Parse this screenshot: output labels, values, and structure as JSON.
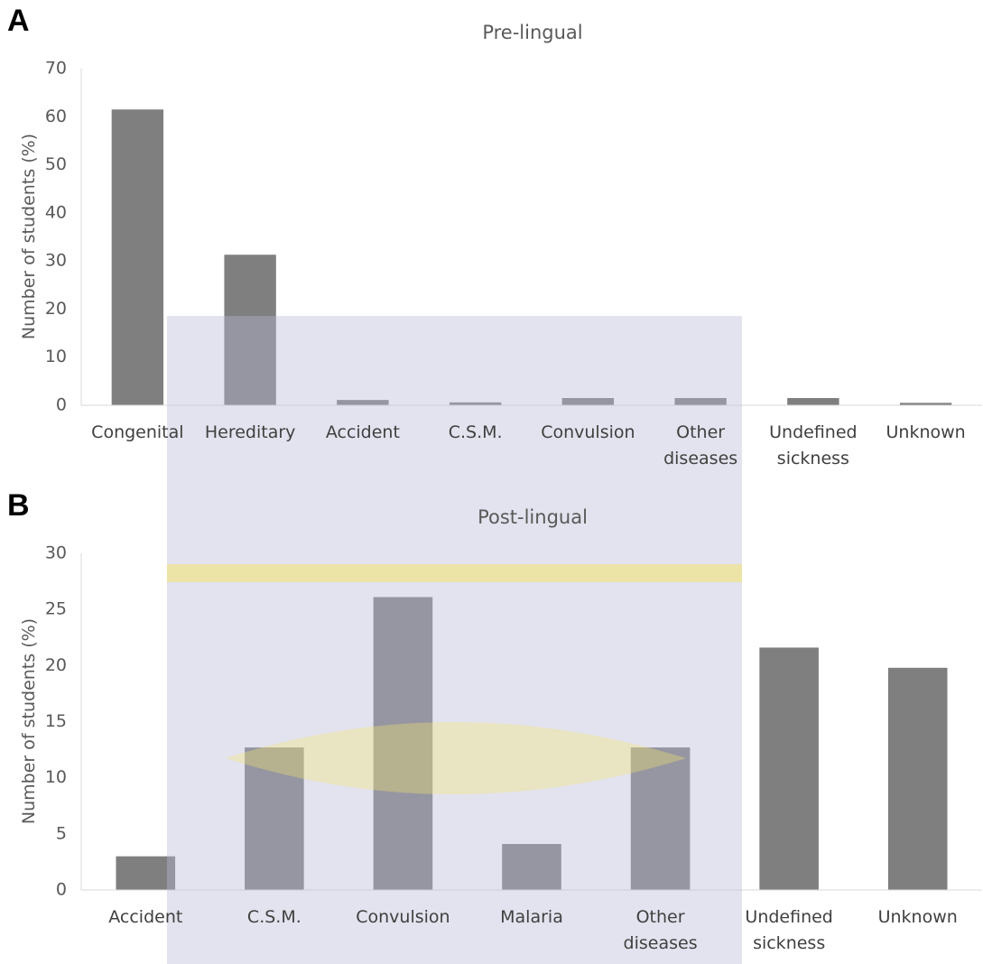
{
  "chart_data": [
    {
      "type": "bar",
      "panel_label": "A",
      "title": "Pre-lingual",
      "y_label": "Number of students (%)",
      "categories": [
        "Congenital",
        "Hereditary",
        "Accident",
        "C.S.M.",
        "Convulsion",
        "Other diseases",
        "Undefined sickness",
        "Unknown"
      ],
      "values": [
        61.5,
        31.3,
        1.1,
        0.6,
        1.5,
        1.5,
        1.5,
        0.5
      ],
      "color": "#7f7f7f",
      "ylim": [
        0,
        70
      ],
      "yticks": [
        0,
        10,
        20,
        30,
        40,
        50,
        60,
        70
      ],
      "grid": false
    },
    {
      "type": "bar",
      "panel_label": "B",
      "title": "Post-lingual",
      "y_label": "Number of students (%)",
      "categories": [
        "Accident",
        "C.S.M.",
        "Convulsion",
        "Malaria",
        "Other diseases",
        "Undefined sickness",
        "Unknown"
      ],
      "values": [
        3.0,
        12.7,
        26.1,
        4.1,
        12.7,
        21.6,
        19.8
      ],
      "color": "#7f7f7f",
      "ylim": [
        0,
        30
      ],
      "yticks": [
        0,
        5,
        10,
        15,
        20,
        25,
        30
      ],
      "grid": false
    }
  ]
}
